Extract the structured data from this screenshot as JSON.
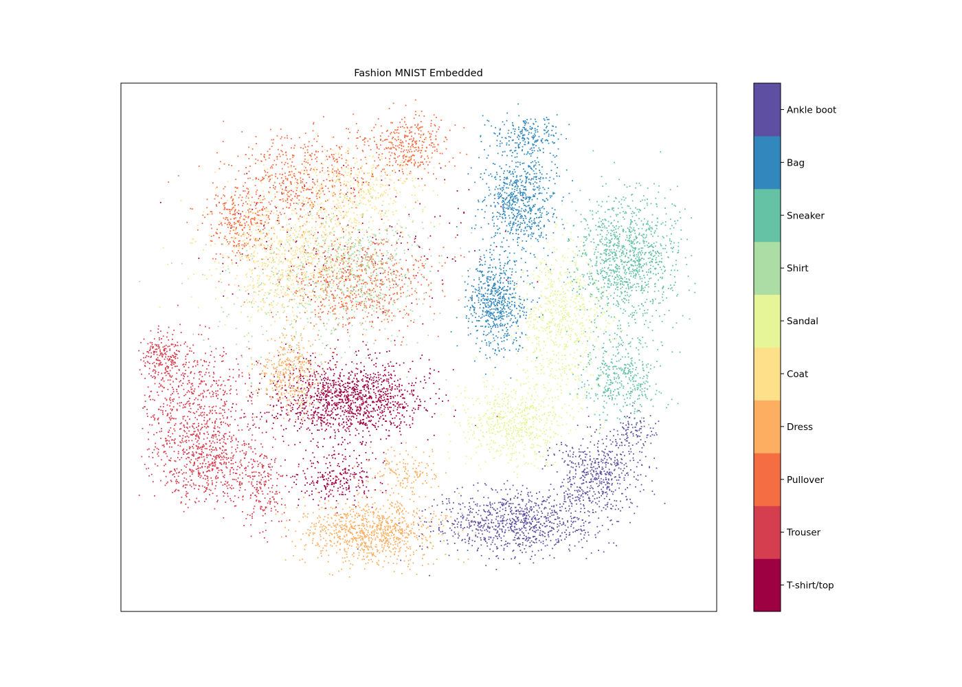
{
  "chart_data": {
    "type": "scatter",
    "title": "Fashion MNIST Embedded",
    "xlabel": "",
    "ylabel": "",
    "xticks": [],
    "yticks": [],
    "grid": false,
    "xlim": [
      0,
      100
    ],
    "ylim": [
      0,
      100
    ],
    "colormap": "Spectral",
    "colorbar_placement": "right",
    "colorbar_labels": [
      "T-shirt/top",
      "Trouser",
      "Pullover",
      "Dress",
      "Coat",
      "Sandal",
      "Shirt",
      "Sneaker",
      "Bag",
      "Ankle boot"
    ],
    "colors": [
      "#9e0142",
      "#d53e4f",
      "#f46d43",
      "#fdae61",
      "#fee08b",
      "#e6f598",
      "#abdda4",
      "#66c2a5",
      "#3288bd",
      "#5e4fa2"
    ],
    "series": [
      {
        "name": "T-shirt/top",
        "clusters": [
          [
            38,
            40,
            10,
            6,
            1300
          ],
          [
            36,
            25,
            6,
            4,
            250
          ],
          [
            40,
            70,
            20,
            12,
            150
          ]
        ]
      },
      {
        "name": "Trouser",
        "clusters": [
          [
            12,
            38,
            8,
            10,
            700
          ],
          [
            16,
            28,
            7,
            6,
            500
          ],
          [
            7,
            48,
            3,
            4,
            200
          ],
          [
            24,
            22,
            3,
            6,
            150
          ]
        ]
      },
      {
        "name": "Pullover",
        "clusters": [
          [
            40,
            62,
            10,
            7,
            700
          ],
          [
            30,
            82,
            9,
            7,
            500
          ],
          [
            48,
            88,
            6,
            5,
            350
          ],
          [
            20,
            74,
            5,
            6,
            300
          ]
        ]
      },
      {
        "name": "Dress",
        "clusters": [
          [
            42,
            15,
            9,
            5,
            900
          ],
          [
            28,
            45,
            4,
            6,
            350
          ],
          [
            48,
            26,
            5,
            4,
            150
          ]
        ]
      },
      {
        "name": "Coat",
        "clusters": [
          [
            28,
            67,
            10,
            10,
            800
          ],
          [
            40,
            79,
            9,
            7,
            400
          ]
        ]
      },
      {
        "name": "Sandal",
        "clusters": [
          [
            66,
            36,
            7,
            6,
            600
          ],
          [
            74,
            55,
            6,
            12,
            700
          ]
        ]
      },
      {
        "name": "Shirt",
        "clusters": [
          [
            33,
            60,
            15,
            14,
            400
          ],
          [
            41,
            66,
            9,
            7,
            300
          ]
        ]
      },
      {
        "name": "Sneaker",
        "clusters": [
          [
            85,
            67,
            7,
            10,
            1100
          ],
          [
            84,
            44,
            5,
            6,
            400
          ]
        ]
      },
      {
        "name": "Bag",
        "clusters": [
          [
            67,
            78,
            5,
            8,
            700
          ],
          [
            63,
            58,
            4,
            7,
            650
          ],
          [
            68,
            90,
            5,
            3,
            200
          ]
        ]
      },
      {
        "name": "Ankle boot",
        "clusters": [
          [
            67,
            17,
            11,
            5,
            900
          ],
          [
            80,
            26,
            6,
            6,
            500
          ],
          [
            86,
            34,
            3,
            3,
            100
          ]
        ]
      }
    ]
  }
}
